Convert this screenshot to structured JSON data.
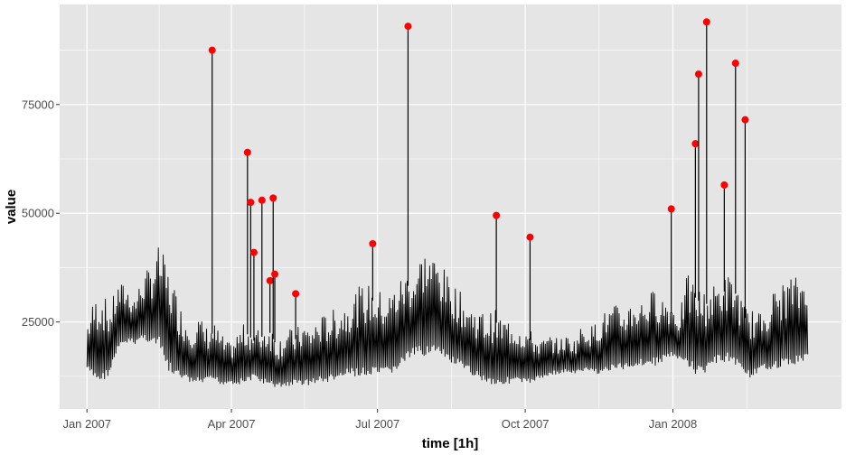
{
  "chart_data": {
    "type": "line",
    "xlabel": "time [1h]",
    "ylabel": "value",
    "x_ticks": [
      "Jan 2007",
      "Apr 2007",
      "Jul 2007",
      "Oct 2007",
      "Jan 2008"
    ],
    "x_tick_dates": [
      "2007-01-01",
      "2007-04-01",
      "2007-07-01",
      "2007-10-01",
      "2008-01-01"
    ],
    "x_range": [
      "2006-12-15",
      "2008-04-15"
    ],
    "y_ticks": [
      25000,
      50000,
      75000
    ],
    "ylim": [
      5000,
      98000
    ],
    "grid": true,
    "legend": "none",
    "colors": {
      "panel": "#e5e5e5",
      "grid": "#ffffff",
      "line": "#000000",
      "point": "#ff0000"
    },
    "series": [
      {
        "style": "line",
        "description_points_daily_envelope": true,
        "x": [
          "2007-01-01",
          "2007-01-05",
          "2007-01-10",
          "2007-01-15",
          "2007-01-20",
          "2007-01-25",
          "2007-01-31",
          "2007-02-05",
          "2007-02-10",
          "2007-02-15",
          "2007-02-20",
          "2007-02-25",
          "2007-03-01",
          "2007-03-06",
          "2007-03-11",
          "2007-03-16",
          "2007-03-21",
          "2007-03-26",
          "2007-03-31",
          "2007-04-05",
          "2007-04-10",
          "2007-04-15",
          "2007-04-20",
          "2007-04-25",
          "2007-04-30",
          "2007-05-05",
          "2007-05-10",
          "2007-05-15",
          "2007-05-20",
          "2007-05-25",
          "2007-05-30",
          "2007-06-04",
          "2007-06-09",
          "2007-06-14",
          "2007-06-19",
          "2007-06-24",
          "2007-06-29",
          "2007-07-04",
          "2007-07-09",
          "2007-07-14",
          "2007-07-19",
          "2007-07-24",
          "2007-07-29",
          "2007-08-03",
          "2007-08-08",
          "2007-08-13",
          "2007-08-18",
          "2007-08-23",
          "2007-08-28",
          "2007-09-02",
          "2007-09-07",
          "2007-09-12",
          "2007-09-17",
          "2007-09-22",
          "2007-09-27",
          "2007-10-02",
          "2007-10-07",
          "2007-10-12",
          "2007-10-17",
          "2007-10-22",
          "2007-10-27",
          "2007-11-01",
          "2007-11-06",
          "2007-11-11",
          "2007-11-16",
          "2007-11-21",
          "2007-11-26",
          "2007-12-01",
          "2007-12-06",
          "2007-12-11",
          "2007-12-16",
          "2007-12-21",
          "2007-12-26",
          "2007-12-31",
          "2008-01-05",
          "2008-01-10",
          "2008-01-15",
          "2008-01-20",
          "2008-01-25",
          "2008-01-30",
          "2008-02-04",
          "2008-02-09",
          "2008-02-14",
          "2008-02-19",
          "2008-02-24",
          "2008-02-29",
          "2008-03-05",
          "2008-03-10",
          "2008-03-15",
          "2008-03-20",
          "2008-03-25"
        ],
        "min": [
          14000,
          12000,
          11000,
          13000,
          18000,
          20000,
          20000,
          21000,
          20000,
          19000,
          14000,
          12000,
          12000,
          11000,
          10500,
          11000,
          11500,
          10500,
          11000,
          10500,
          11000,
          12000,
          11000,
          10000,
          10000,
          10000,
          10500,
          10500,
          10500,
          11000,
          11000,
          11500,
          12000,
          12500,
          12500,
          12000,
          12500,
          12500,
          13000,
          14000,
          16000,
          17000,
          17000,
          18000,
          17000,
          16000,
          15000,
          14000,
          13000,
          12000,
          11000,
          10500,
          10500,
          11000,
          11000,
          10500,
          11500,
          12000,
          13000,
          13000,
          13500,
          13000,
          13500,
          13500,
          13000,
          13500,
          14000,
          14000,
          14500,
          15000,
          15000,
          15000,
          16000,
          17000,
          16000,
          15000,
          13000,
          13000,
          15000,
          15500,
          16000,
          15000,
          13500,
          12000,
          13500,
          14000,
          14500,
          14500,
          15000,
          15500,
          16500
        ],
        "max": [
          25000,
          30000,
          33000,
          28000,
          34000,
          34000,
          31000,
          36000,
          38000,
          43000,
          38000,
          33000,
          28000,
          25000,
          27000,
          24000,
          25000,
          22000,
          20000,
          23000,
          25000,
          23000,
          24000,
          25000,
          21000,
          24000,
          23000,
          25000,
          24000,
          26000,
          27000,
          28000,
          29000,
          31000,
          33000,
          34000,
          33000,
          32000,
          32000,
          35000,
          37000,
          37000,
          42000,
          41000,
          40000,
          36000,
          34000,
          31000,
          29000,
          28000,
          27000,
          28000,
          26000,
          26000,
          25000,
          24000,
          22000,
          21000,
          22000,
          21000,
          22000,
          21000,
          25000,
          24000,
          26000,
          28000,
          29000,
          28000,
          30000,
          30000,
          31000,
          33000,
          31000,
          30000,
          27000,
          36000,
          34000,
          32000,
          33000,
          35000,
          36000,
          35000,
          29000,
          28000,
          27000,
          30000,
          33000,
          34000,
          36000,
          35000,
          39000
        ]
      },
      {
        "style": "spikes",
        "x": [
          "2007-03-20",
          "2007-04-11",
          "2007-04-13",
          "2007-04-15",
          "2007-04-20",
          "2007-04-25",
          "2007-04-27",
          "2007-04-28",
          "2007-05-11",
          "2007-06-28",
          "2007-07-20",
          "2007-09-13",
          "2007-10-04",
          "2007-12-31",
          "2008-01-15",
          "2008-01-17",
          "2008-01-22",
          "2008-02-02",
          "2008-02-09",
          "2008-02-15"
        ],
        "values": [
          87500,
          64000,
          52500,
          41000,
          53000,
          34500,
          53500,
          36000,
          31500,
          43000,
          93000,
          49500,
          44500,
          51000,
          66000,
          82000,
          94000,
          56500,
          84500,
          71500
        ]
      }
    ]
  }
}
